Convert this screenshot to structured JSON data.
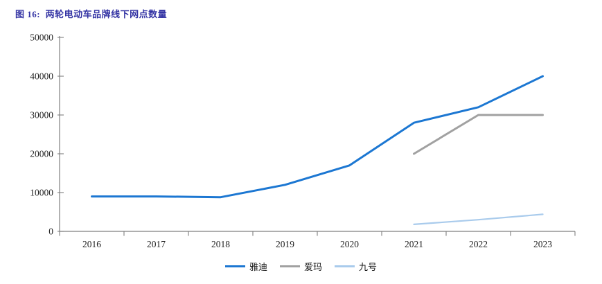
{
  "colors": {
    "title_text": "#3434A4",
    "axis_line": "#7F7F7F",
    "tick_label_text": "#1F1F1F",
    "yadi_blue": "#1C77D2",
    "aima_gray": "#A1A1A1",
    "ninebot_light_blue": "#A9CBEC"
  },
  "chart_data": {
    "type": "line",
    "title": "图 16:  两轮电动车品牌线下网点数量",
    "x": [
      "2016",
      "2017",
      "2018",
      "2019",
      "2020",
      "2021",
      "2022",
      "2023"
    ],
    "series": [
      {
        "name": "雅迪",
        "color": "#1C77D2",
        "stroke_width": 3,
        "values": [
          9000,
          9000,
          8800,
          12000,
          17000,
          28000,
          32000,
          40000
        ]
      },
      {
        "name": "爱玛",
        "color": "#A1A1A1",
        "stroke_width": 3,
        "values": [
          null,
          null,
          null,
          null,
          null,
          20000,
          30000,
          30000
        ]
      },
      {
        "name": "九号",
        "color": "#A9CBEC",
        "stroke_width": 2.2,
        "values": [
          null,
          null,
          null,
          null,
          null,
          1800,
          3000,
          4400
        ]
      }
    ],
    "ylim": [
      0,
      50000
    ],
    "yticks": [
      0,
      10000,
      20000,
      30000,
      40000,
      50000
    ],
    "xlabel": "",
    "ylabel": "",
    "grid": false,
    "legend_position": "bottom"
  }
}
